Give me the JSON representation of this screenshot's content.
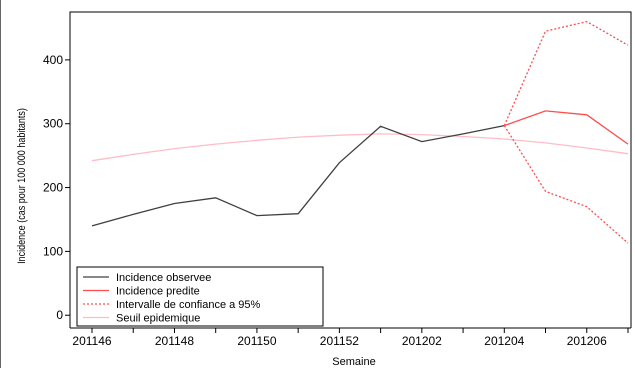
{
  "chart_data": {
    "type": "line",
    "title": "",
    "xlabel": "Semaine",
    "ylabel": "Incidence (cas pour 100 000 habitants)",
    "x_categories": [
      "201146",
      "201147",
      "201148",
      "201149",
      "201150",
      "201151",
      "201152",
      "201201",
      "201202",
      "201203",
      "201204",
      "201205",
      "201206",
      "201207"
    ],
    "x_tick_labels": [
      "201146",
      "201148",
      "201150",
      "201152",
      "201202",
      "201204",
      "201206"
    ],
    "y_ticks": [
      0,
      100,
      200,
      300,
      400
    ],
    "ylim": [
      -20,
      475
    ],
    "grid": false,
    "legend_position": "bottom-left",
    "series": [
      {
        "name": "Incidence observee",
        "color": "#404040",
        "style": "solid",
        "x": [
          "201146",
          "201147",
          "201148",
          "201149",
          "201150",
          "201151",
          "201152",
          "201201",
          "201202",
          "201203",
          "201204"
        ],
        "values": [
          140,
          158,
          175,
          184,
          156,
          159,
          239,
          296,
          272,
          284,
          297
        ]
      },
      {
        "name": "Incidence predite",
        "color": "#ff4d4d",
        "style": "solid",
        "x": [
          "201204",
          "201205",
          "201206",
          "201207"
        ],
        "values": [
          297,
          320,
          314,
          268
        ]
      },
      {
        "name": "Intervalle de confiance a 95%",
        "color": "#ff4d4d",
        "style": "dotted",
        "x": [
          "201204",
          "201205",
          "201206",
          "201207"
        ],
        "values": [
          297,
          445,
          460,
          423
        ],
        "lower": [
          297,
          194,
          170,
          113
        ]
      },
      {
        "name": "Seuil epidemique",
        "color": "#ffbcc8",
        "style": "solid",
        "x": [
          "201146",
          "201147",
          "201148",
          "201149",
          "201150",
          "201151",
          "201152",
          "201201",
          "201202",
          "201203",
          "201204",
          "201205",
          "201206",
          "201207"
        ],
        "values": [
          242,
          252,
          261,
          268,
          274,
          279,
          282,
          284,
          283,
          280,
          276,
          270,
          262,
          253
        ]
      }
    ]
  }
}
